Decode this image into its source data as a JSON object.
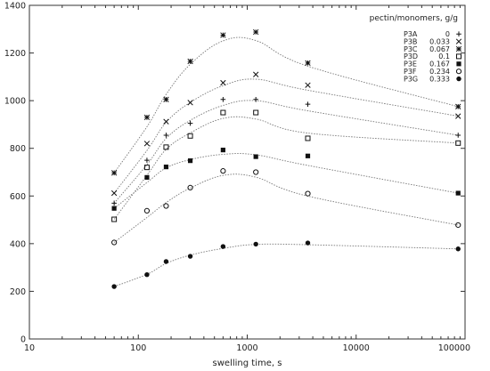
{
  "chart_data": {
    "type": "scatter",
    "title": "",
    "xlabel": "swelling time, s",
    "ylabel": "",
    "xscale": "log",
    "xlim": [
      10,
      100000
    ],
    "ylim": [
      0,
      1400
    ],
    "x_ticks": [
      "10",
      "100",
      "1000",
      "10000",
      "100000"
    ],
    "y_ticks": [
      "0",
      "200",
      "400",
      "600",
      "800",
      "1000",
      "1200",
      "1400"
    ],
    "grid": false,
    "legend_title": "pectin/monomers, g/g",
    "legend_position": "top-right",
    "fit_curves": "dotted",
    "series": [
      {
        "name": "P3A",
        "ratio": "0",
        "marker": "plus",
        "x": [
          60,
          120,
          180,
          300,
          600,
          1200,
          3600,
          86400
        ],
        "y": [
          570,
          750,
          855,
          905,
          1005,
          1005,
          985,
          855
        ]
      },
      {
        "name": "P3B",
        "ratio": "0.033",
        "marker": "cross",
        "x": [
          60,
          120,
          180,
          300,
          600,
          1200,
          3600,
          86400
        ],
        "y": [
          612,
          820,
          912,
          992,
          1075,
          1110,
          1065,
          935
        ]
      },
      {
        "name": "P3C",
        "ratio": "0.067",
        "marker": "star",
        "x": [
          60,
          120,
          180,
          300,
          600,
          1200,
          3600,
          86400
        ],
        "y": [
          697,
          930,
          1005,
          1165,
          1275,
          1288,
          1158,
          975
        ]
      },
      {
        "name": "P3D",
        "ratio": "0.1",
        "marker": "open-square",
        "x": [
          60,
          120,
          180,
          300,
          600,
          1200,
          3600,
          86400
        ],
        "y": [
          502,
          720,
          805,
          852,
          950,
          950,
          842,
          822
        ]
      },
      {
        "name": "P3E",
        "ratio": "0.167",
        "marker": "filled-square",
        "x": [
          60,
          120,
          180,
          300,
          600,
          1200,
          3600,
          86400
        ],
        "y": [
          548,
          678,
          722,
          748,
          793,
          765,
          768,
          612
        ]
      },
      {
        "name": "P3F",
        "ratio": "0.234",
        "marker": "open-circle",
        "x": [
          60,
          120,
          180,
          300,
          600,
          1200,
          3600,
          86400
        ],
        "y": [
          405,
          538,
          558,
          635,
          705,
          700,
          610,
          478
        ]
      },
      {
        "name": "P3G",
        "ratio": "0.333",
        "marker": "filled-circle",
        "x": [
          60,
          120,
          180,
          300,
          600,
          1200,
          3600,
          86400
        ],
        "y": [
          220,
          270,
          325,
          347,
          388,
          398,
          403,
          378
        ]
      }
    ]
  }
}
